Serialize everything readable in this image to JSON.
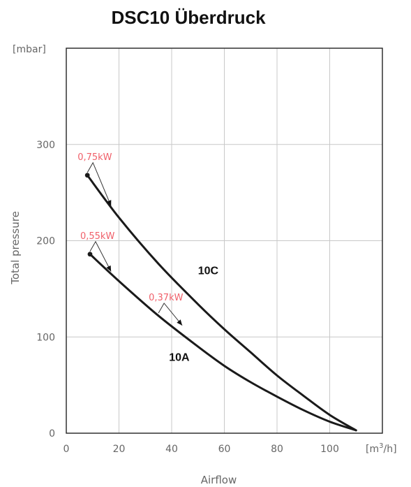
{
  "chart_data": {
    "type": "line",
    "title": "DSC10 Überdruck",
    "xlabel": "Airflow",
    "ylabel": "Total pressure",
    "x_unit_label": "[m³/h]",
    "y_unit_label": "[mbar]",
    "xlim": [
      0,
      120
    ],
    "ylim": [
      0,
      400
    ],
    "x_ticks": [
      0,
      20,
      40,
      60,
      80,
      100
    ],
    "y_ticks": [
      0,
      100,
      200,
      300
    ],
    "grid": true,
    "series": [
      {
        "name": "10C",
        "x": [
          8,
          20,
          35,
          50,
          60,
          70,
          80,
          90,
          100,
          110
        ],
        "y": [
          268,
          224,
          176,
          134,
          108,
          84,
          60,
          39,
          19,
          3
        ]
      },
      {
        "name": "10A",
        "x": [
          9,
          20,
          35,
          50,
          60,
          70,
          80,
          90,
          100,
          110
        ],
        "y": [
          186,
          158,
          122,
          90,
          70,
          53,
          38,
          24,
          12,
          3
        ]
      }
    ],
    "annotations": [
      {
        "text": "0,75kW",
        "x": 8,
        "y": 268,
        "arrow_to": [
          17,
          236
        ]
      },
      {
        "text": "0,55kW",
        "x": 9,
        "y": 186,
        "arrow_to": [
          17,
          168
        ]
      },
      {
        "text": "0,37kW",
        "x": 35,
        "y": 122,
        "arrow_to": [
          44,
          112
        ]
      }
    ],
    "colors": {
      "curve": "#1a1a1a",
      "grid": "#c8c8c8",
      "power_label": "#f0606a"
    }
  }
}
